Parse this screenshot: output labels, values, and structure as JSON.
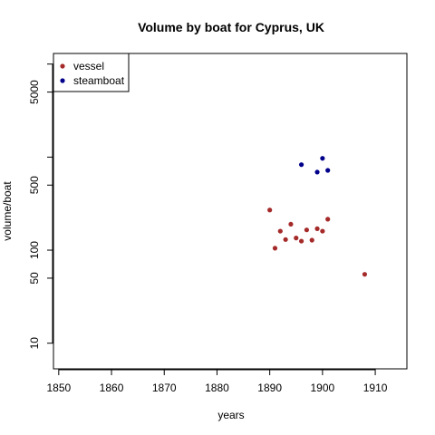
{
  "chart_data": {
    "type": "scatter",
    "title": "Volume by boat for Cyprus, UK",
    "xlabel": "years",
    "ylabel": "volume/boat",
    "y_scale": "log",
    "xlim": [
      1849,
      1916
    ],
    "ylim": [
      5.3,
      13000
    ],
    "x_ticks": [
      1850,
      1860,
      1870,
      1880,
      1890,
      1900,
      1910
    ],
    "y_ticks": [
      10,
      50,
      100,
      500,
      5000
    ],
    "y_minor_ticks": [
      1000,
      10000
    ],
    "grid": false,
    "legend_position": "top-left",
    "series": [
      {
        "name": "vessel",
        "color": "#a52a2a",
        "points": [
          {
            "x": 1890,
            "y": 270
          },
          {
            "x": 1891,
            "y": 105
          },
          {
            "x": 1892,
            "y": 160
          },
          {
            "x": 1893,
            "y": 130
          },
          {
            "x": 1894,
            "y": 190
          },
          {
            "x": 1895,
            "y": 135
          },
          {
            "x": 1896,
            "y": 125
          },
          {
            "x": 1897,
            "y": 165
          },
          {
            "x": 1898,
            "y": 128
          },
          {
            "x": 1899,
            "y": 170
          },
          {
            "x": 1900,
            "y": 160
          },
          {
            "x": 1901,
            "y": 215
          },
          {
            "x": 1908,
            "y": 55
          }
        ]
      },
      {
        "name": "steamboat",
        "color": "#00008b",
        "points": [
          {
            "x": 1896,
            "y": 830
          },
          {
            "x": 1899,
            "y": 690
          },
          {
            "x": 1900,
            "y": 970
          },
          {
            "x": 1901,
            "y": 720
          }
        ]
      }
    ]
  }
}
